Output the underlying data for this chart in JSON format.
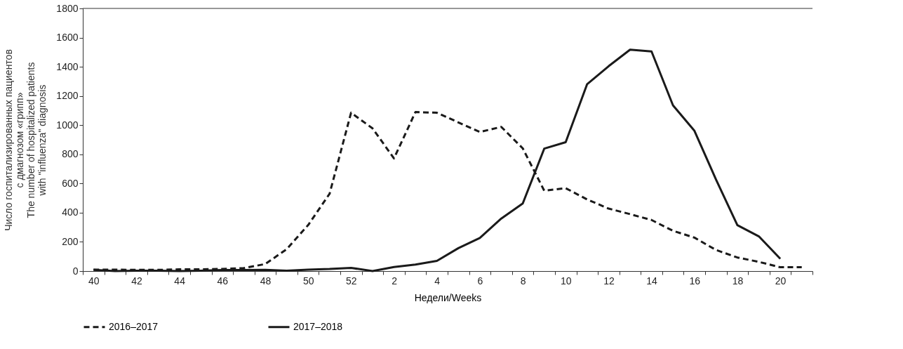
{
  "chart_data": {
    "type": "line",
    "xlabel": "Недели/Weeks",
    "ylabel": [
      "Число госпитализированных пациентов",
      "с дмагнозом «грипп»",
      "The number of hospitalized patients",
      "with \"influenza\" diagnosis"
    ],
    "categories": [
      "40",
      null,
      "42",
      null,
      "44",
      null,
      "46",
      null,
      "48",
      null,
      "50",
      null,
      "52",
      null,
      "2",
      null,
      "4",
      null,
      "6",
      null,
      "8",
      null,
      "10",
      null,
      "12",
      null,
      "14",
      null,
      "16",
      null,
      "18",
      null,
      "20",
      null
    ],
    "series": [
      {
        "name": "2016–2017",
        "color": "#1a1a1a",
        "line_style": "dashed",
        "values": [
          10,
          10,
          8,
          8,
          12,
          12,
          15,
          20,
          48,
          150,
          315,
          530,
          1085,
          978,
          772,
          1090,
          1085,
          1019,
          953,
          988,
          841,
          551,
          568,
          491,
          428,
          390,
          350,
          276,
          229,
          145,
          93,
          63,
          26,
          26
        ]
      },
      {
        "name": "2017–2018",
        "color": "#1a1a1a",
        "line_style": "solid",
        "values": [
          9,
          0,
          2,
          3,
          0,
          3,
          7,
          7,
          9,
          3,
          10,
          14,
          22,
          0,
          28,
          45,
          70,
          157,
          227,
          360,
          463,
          839,
          883,
          1281,
          1404,
          1517,
          1505,
          1136,
          961,
          629,
          315,
          238,
          84,
          null
        ]
      }
    ],
    "ylim": [
      0,
      1800
    ],
    "yticks": [
      0,
      200,
      400,
      600,
      800,
      1000,
      1200,
      1400,
      1600,
      1800
    ],
    "grid": false,
    "legend": "bottom",
    "marker": "none"
  }
}
